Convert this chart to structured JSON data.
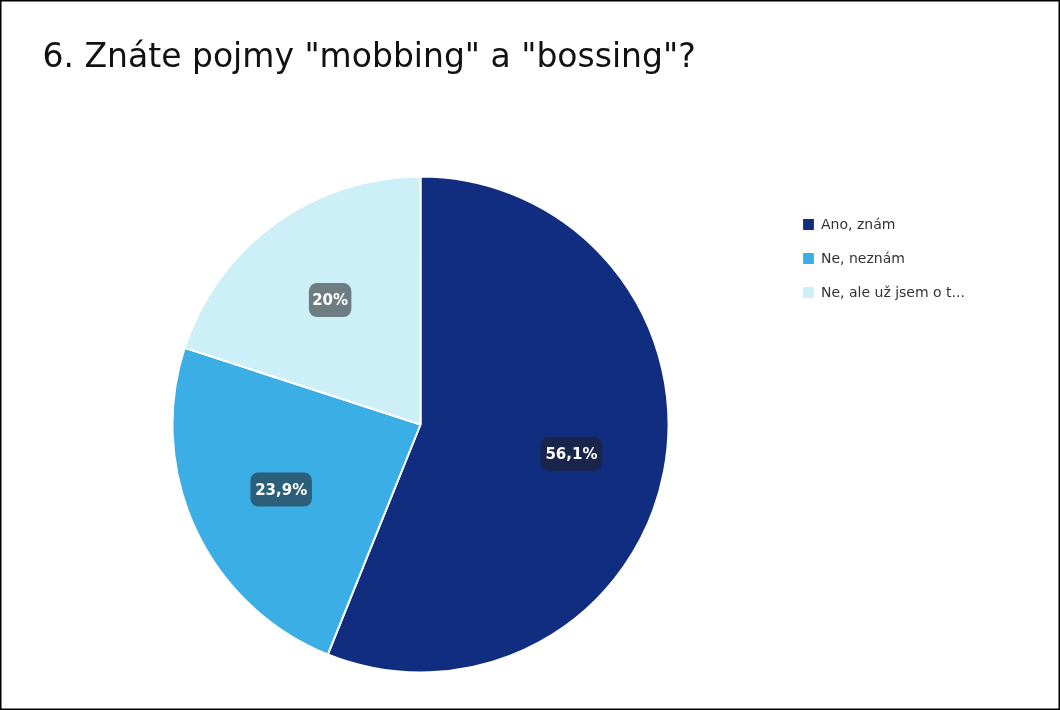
{
  "chart_data": {
    "type": "pie",
    "title": "6. Znáte pojmy \"mobbing\" a \"bossing\"?",
    "categories": [
      "Ano, znám",
      "Ne, neznám",
      "Ne, ale už jsem o t..."
    ],
    "values": [
      56.1,
      23.9,
      20
    ],
    "colors": [
      "#112d7f",
      "#3baee6",
      "#cdf0f8"
    ],
    "value_labels": [
      "56,1%",
      "23,9%",
      "20%"
    ],
    "legend": "right"
  }
}
